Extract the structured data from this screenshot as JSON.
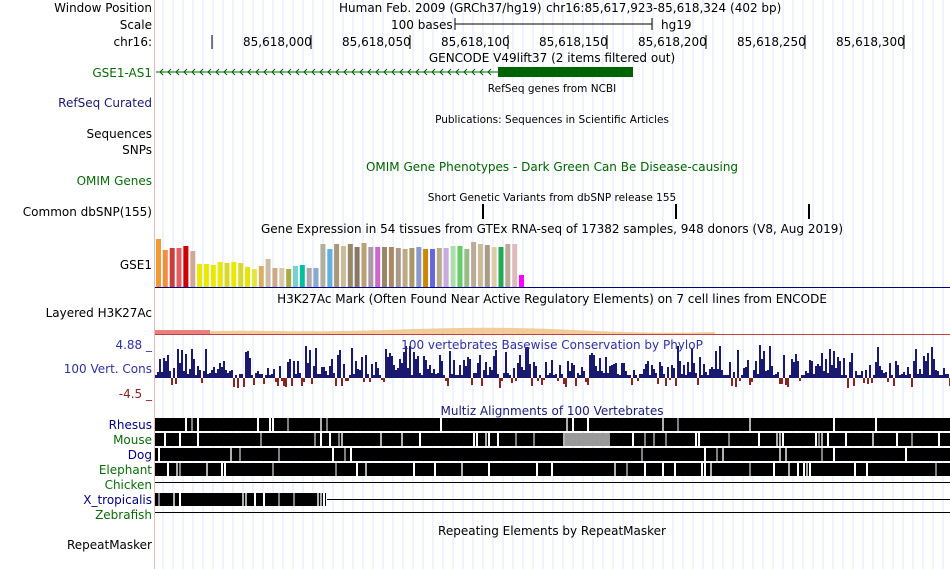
{
  "header": {
    "window_position_label": "Window Position",
    "scale_label": "Scale",
    "chrom_label": "chr16:",
    "assembly": "Human Feb. 2009 (GRCh37/hg19)",
    "coordinates": "chr16:85,617,923-85,618,324 (402 bp)",
    "scale_text": "100 bases",
    "scale_db": "hg19",
    "ruler_ticks": [
      "85,618,000",
      "85,618,050",
      "85,618,100",
      "85,618,150",
      "85,618,200",
      "85,618,250",
      "85,618,300"
    ]
  },
  "tracks": {
    "gencode": {
      "title": "GENCODE V49lift37 (2 items filtered out)",
      "item_label": "GSE1-AS1",
      "color": "#006400"
    },
    "refseq": {
      "label": "RefSeq Curated",
      "title": "RefSeq genes from NCBI"
    },
    "publications": {
      "label": "Sequences",
      "title": "Publications: Sequences in Scientific Articles"
    },
    "snps": {
      "label": "SNPs"
    },
    "omim": {
      "label": "OMIM Genes",
      "title": "OMIM Gene Phenotypes - Dark Green Can Be Disease-causing"
    },
    "dbsnp": {
      "label": "Common dbSNP(155)",
      "title": "Short Genetic Variants from dbSNP release 155"
    },
    "gtex": {
      "label": "GSE1",
      "title": "Gene Expression in 54 tissues from GTEx RNA-seq of 17382 samples, 948 donors (V8, Aug 2019)",
      "bar_values": [
        1.0,
        0.78,
        0.82,
        0.82,
        0.86,
        0.74,
        0.48,
        0.48,
        0.46,
        0.52,
        0.5,
        0.52,
        0.5,
        0.42,
        0.38,
        0.44,
        0.58,
        0.4,
        0.4,
        0.38,
        0.44,
        0.46,
        0.4,
        0.4,
        0.9,
        0.8,
        0.9,
        0.86,
        0.9,
        0.84,
        0.92,
        0.84,
        0.84,
        0.84,
        0.84,
        0.82,
        0.8,
        0.82,
        0.84,
        0.8,
        0.8,
        0.82,
        0.82,
        0.86,
        0.86,
        0.8,
        0.94,
        0.9,
        0.88,
        0.84,
        0.84,
        0.9,
        0.9,
        0.26
      ],
      "bar_colors": [
        "#f09a37",
        "#ed9040",
        "#cc3a3a",
        "#e06060",
        "#d00000",
        "#ccaa99",
        "#e8e800",
        "#e8e800",
        "#e8e800",
        "#e8e800",
        "#d8d828",
        "#e8e800",
        "#d8d830",
        "#e6e600",
        "#e6e640",
        "#d8b060",
        "#cbbcaa",
        "#ccaa88",
        "#d8c8a8",
        "#aaaa44",
        "#7ad0d0",
        "#00bfa0",
        "#b0a8a8",
        "#88aacc",
        "#b0b0a0",
        "#60b0e0",
        "#a89878",
        "#ccbb99",
        "#998866",
        "#887766",
        "#bba077",
        "#aa99aa",
        "#cc66cc",
        "#998866",
        "#aa8866",
        "#aa9988",
        "#bbaa88",
        "#aa9966",
        "#8899cc",
        "#cc8800",
        "#6666dd",
        "#bbaa88",
        "#ccaadd",
        "#aaddaa",
        "#66cc66",
        "#99bb88",
        "#bbaa99",
        "#ccbb99",
        "#aa9988",
        "#ddccaa",
        "#22aa55",
        "#bbaa99",
        "#ddbbbb",
        "#ff00ff"
      ]
    },
    "h3k27ac": {
      "label": "Layered H3K27Ac",
      "title": "H3K27Ac Mark (Often Found Near Active Regulatory Elements) on 7 cell lines from ENCODE"
    },
    "cons": {
      "label": "100 Vert. Cons",
      "title": "100 vertebrates Basewise Conservation by PhyloP",
      "ymax": "4.88 _",
      "ymin": "-4.5 _",
      "pos_color": "#191970",
      "neg_color": "#8b2323"
    },
    "multiz": {
      "title": "Multiz Alignments of 100 Vertebrates",
      "species": [
        "Rhesus",
        "Mouse",
        "Dog",
        "Elephant",
        "Chicken",
        "X_tropicalis",
        "Zebrafish"
      ]
    },
    "rmsk": {
      "label": "RepeatMasker",
      "title": "Repeating Elements by RepeatMasker"
    }
  }
}
